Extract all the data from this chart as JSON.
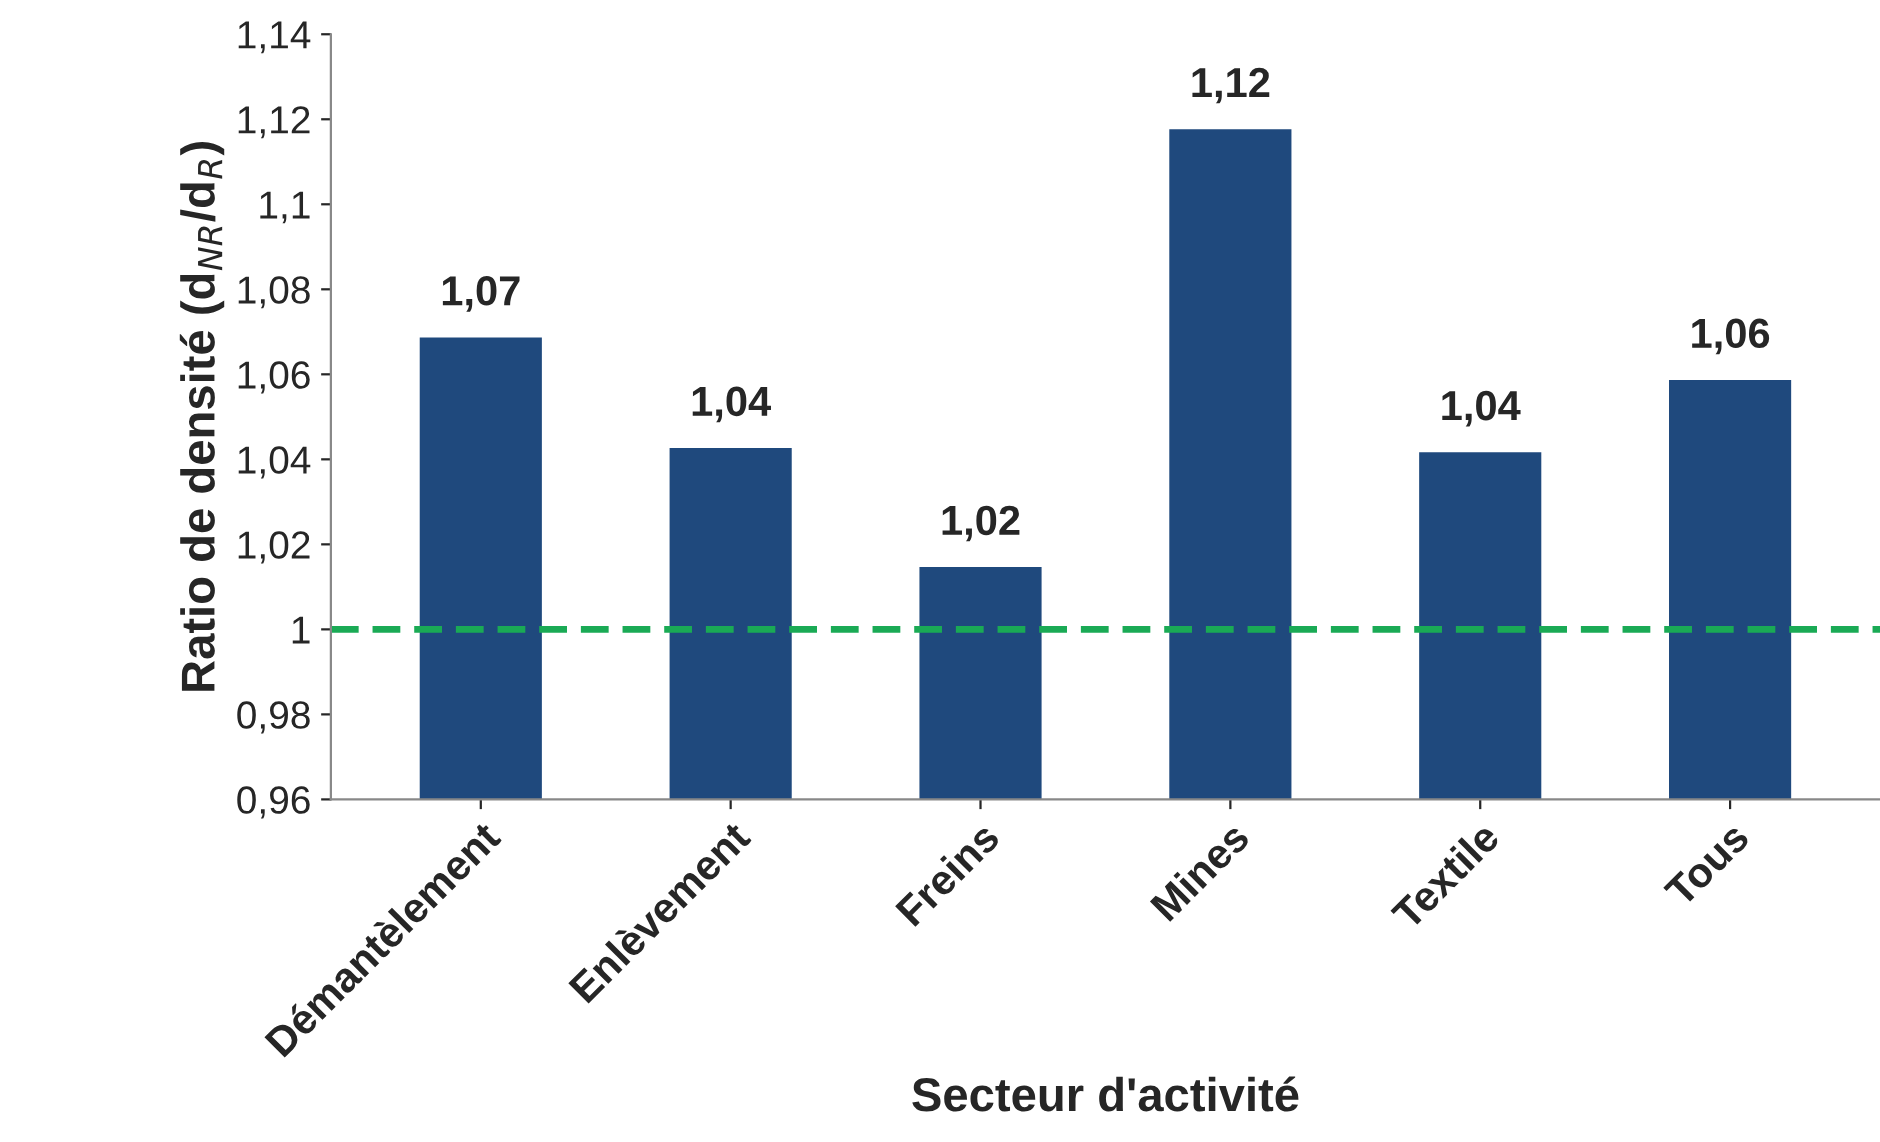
{
  "chart_data": {
    "type": "bar",
    "xlabel": "Secteur d'activité",
    "ylabel": "Ratio de densité (d$_{NR}$/d$_{R}$)",
    "categories": [
      "Démantèlement",
      "Enlèvement",
      "Freins",
      "Mines",
      "Textile",
      "Tous"
    ],
    "values": [
      1.069,
      1.043,
      1.015,
      1.118,
      1.042,
      1.059
    ],
    "value_labels": [
      "1,07",
      "1,04",
      "1,02",
      "1,12",
      "1,04",
      "1,06"
    ],
    "color": "#1f497d",
    "ylim": [
      0.96,
      1.14
    ],
    "yticks": [
      {
        "value": 0.96,
        "label": "0,96"
      },
      {
        "value": 0.98,
        "label": "0,98"
      },
      1,
      {
        "value": 1.02,
        "label": "1,02"
      },
      {
        "value": 1.04,
        "label": "1,04"
      },
      {
        "value": 1.06,
        "label": "1,06"
      },
      {
        "value": 1.08,
        "label": "1,08"
      },
      {
        "value": 1.1,
        "label": "1,1"
      },
      {
        "value": 1.12,
        "label": "1,12"
      },
      {
        "value": 1.14,
        "label": "1,14"
      }
    ],
    "ref_lines": [
      {
        "axis": "y",
        "value": 1,
        "color": "#1aaa55",
        "line_style": "dashed"
      }
    ],
    "grid": false,
    "legend": false
  }
}
